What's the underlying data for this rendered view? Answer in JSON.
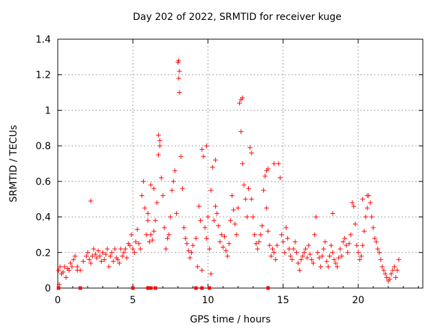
{
  "chart_data": {
    "type": "scatter",
    "title": "Day 202 of 2022, SRMTID for receiver kuge",
    "xlabel": "GPS time / hours",
    "ylabel": "SRMTID / TECUs",
    "xlim": [
      0,
      24.3
    ],
    "ylim": [
      0,
      1.4
    ],
    "xticks": [
      0,
      5,
      10,
      15,
      20
    ],
    "xtick_labels": [
      "0",
      "5",
      "10",
      "15",
      "20"
    ],
    "yticks": [
      0,
      0.2,
      0.4,
      0.6,
      0.8,
      1.0,
      1.2,
      1.4
    ],
    "ytick_labels": [
      "0",
      "0.2",
      "0.4",
      "0.6",
      "0.8",
      "1",
      "1.2",
      "1.4"
    ],
    "grid": true,
    "marker": "+",
    "color": "#ff0000",
    "series": [
      {
        "name": "SRMTID",
        "x": [
          0.05,
          0.15,
          0.25,
          0.35,
          0.45,
          0.55,
          0.65,
          0.75,
          0.85,
          0.95,
          1.05,
          1.15,
          1.3,
          1.5,
          1.7,
          1.9,
          2.0,
          2.1,
          2.2,
          2.3,
          2.4,
          2.5,
          2.6,
          2.7,
          2.8,
          2.9,
          3.0,
          3.1,
          3.2,
          3.3,
          3.4,
          3.5,
          3.6,
          3.7,
          3.8,
          3.9,
          4.0,
          4.1,
          2.2,
          4.3,
          4.4,
          4.5,
          4.6,
          4.7,
          4.8,
          4.9,
          5.0,
          5.1,
          5.2,
          5.3,
          5.4,
          5.5,
          5.6,
          5.7,
          5.8,
          5.9,
          6.0,
          6.1,
          6.2,
          6.3,
          6.4,
          6.5,
          6.6,
          6.7,
          6.8,
          6.9,
          7.0,
          7.1,
          7.2,
          7.3,
          7.4,
          7.5,
          7.6,
          7.7,
          7.8,
          7.9,
          8.0,
          8.05,
          8.1,
          8.2,
          8.3,
          8.4,
          8.5,
          8.6,
          8.7,
          8.8,
          8.9,
          9.0,
          9.2,
          9.4,
          9.5,
          9.6,
          9.7,
          9.8,
          9.9,
          10.0,
          10.1,
          10.2,
          10.3,
          10.4,
          10.5,
          10.6,
          10.7,
          10.8,
          10.9,
          11.0,
          11.1,
          11.2,
          11.3,
          11.4,
          11.5,
          11.6,
          11.7,
          11.8,
          11.9,
          12.0,
          12.1,
          12.2,
          12.3,
          12.4,
          12.5,
          12.6,
          12.7,
          12.8,
          12.9,
          13.0,
          13.1,
          13.2,
          13.3,
          13.4,
          13.5,
          13.6,
          13.7,
          13.8,
          13.9,
          14.0,
          14.1,
          14.2,
          14.3,
          14.4,
          14.5,
          14.6,
          14.7,
          14.8,
          14.9,
          15.0,
          15.1,
          15.2,
          15.3,
          15.4,
          15.5,
          15.6,
          15.7,
          15.8,
          15.9,
          16.0,
          16.1,
          16.2,
          16.3,
          16.4,
          16.5,
          16.6,
          16.7,
          16.8,
          16.9,
          17.0,
          17.1,
          17.2,
          17.3,
          17.4,
          17.5,
          17.6,
          17.7,
          17.8,
          17.9,
          18.0,
          18.1,
          18.2,
          18.3,
          18.4,
          18.5,
          18.6,
          18.7,
          18.8,
          18.9,
          19.0,
          19.1,
          19.2,
          19.3,
          19.4,
          19.5,
          19.6,
          19.7,
          19.8,
          19.9,
          20.0,
          20.1,
          20.2,
          20.3,
          20.4,
          20.5,
          20.6,
          20.7,
          20.8,
          20.9,
          21.0,
          21.1,
          21.2,
          21.3,
          21.4,
          21.5,
          21.6,
          21.7,
          21.8,
          21.9,
          22.0,
          22.1,
          22.2,
          22.3,
          22.4,
          22.5,
          22.6,
          22.7,
          0.1,
          1.3,
          4.2,
          6.0,
          6.2,
          6.4,
          9.3,
          9.6,
          10.2,
          14.0,
          8.05,
          8.1,
          12.3,
          12.2,
          6.7,
          6.8,
          9.9,
          10.5,
          12.9,
          13.9,
          14.4,
          18.3,
          20.3,
          20.6
        ],
        "y": [
          0.1,
          0.12,
          0.08,
          0.09,
          0.12,
          0.06,
          0.11,
          0.1,
          0.14,
          0.12,
          0.16,
          0.18,
          0.12,
          0.1,
          0.15,
          0.18,
          0.2,
          0.16,
          0.14,
          0.18,
          0.22,
          0.19,
          0.17,
          0.21,
          0.18,
          0.15,
          0.2,
          0.16,
          0.19,
          0.22,
          0.12,
          0.18,
          0.2,
          0.15,
          0.22,
          0.17,
          0.16,
          0.14,
          0.49,
          0.18,
          0.2,
          0.22,
          0.17,
          0.25,
          0.24,
          0.3,
          0.22,
          0.2,
          0.26,
          0.33,
          0.25,
          0.22,
          0.52,
          0.6,
          0.45,
          0.3,
          0.38,
          0.26,
          0.3,
          0.27,
          0.32,
          0.38,
          0.48,
          0.75,
          0.83,
          0.62,
          0.52,
          0.34,
          0.22,
          0.28,
          0.3,
          0.4,
          0.55,
          0.6,
          0.66,
          0.42,
          1.27,
          1.18,
          1.1,
          0.74,
          0.56,
          0.34,
          0.28,
          0.25,
          0.21,
          0.17,
          0.2,
          0.24,
          0.28,
          0.46,
          0.38,
          0.78,
          0.74,
          0.34,
          0.28,
          0.4,
          0.22,
          0.55,
          0.68,
          0.38,
          0.46,
          0.42,
          0.35,
          0.26,
          0.3,
          0.23,
          0.29,
          0.21,
          0.18,
          0.25,
          0.38,
          0.52,
          0.44,
          0.36,
          0.3,
          0.45,
          1.04,
          0.88,
          0.7,
          0.58,
          0.5,
          0.4,
          0.56,
          0.79,
          0.76,
          0.4,
          0.3,
          0.25,
          0.22,
          0.26,
          0.3,
          0.35,
          0.55,
          0.63,
          0.45,
          0.32,
          0.24,
          0.18,
          0.22,
          0.2,
          0.16,
          0.24,
          0.7,
          0.62,
          0.3,
          0.26,
          0.2,
          0.34,
          0.28,
          0.22,
          0.18,
          0.16,
          0.22,
          0.26,
          0.2,
          0.14,
          0.1,
          0.16,
          0.18,
          0.2,
          0.22,
          0.17,
          0.24,
          0.19,
          0.16,
          0.14,
          0.3,
          0.4,
          0.2,
          0.17,
          0.12,
          0.18,
          0.22,
          0.26,
          0.15,
          0.12,
          0.18,
          0.24,
          0.2,
          0.16,
          0.14,
          0.12,
          0.17,
          0.22,
          0.18,
          0.26,
          0.28,
          0.24,
          0.2,
          0.25,
          0.3,
          0.48,
          0.46,
          0.36,
          0.24,
          0.2,
          0.16,
          0.18,
          0.24,
          0.32,
          0.4,
          0.45,
          0.52,
          0.48,
          0.4,
          0.34,
          0.28,
          0.26,
          0.22,
          0.2,
          0.16,
          0.12,
          0.1,
          0.08,
          0.06,
          0.04,
          0.05,
          0.08,
          0.1,
          0.12,
          0.06,
          0.1,
          0.16,
          0.02,
          0.1,
          0.22,
          0.42,
          0.58,
          0.56,
          0.12,
          0.1,
          0.08,
          0.67,
          1.28,
          1.22,
          1.07,
          1.06,
          0.86,
          0.8,
          0.8,
          0.72,
          0.5,
          0.66,
          0.7,
          0.42,
          0.5,
          0.52
        ],
        "zero_x": [
          0.05,
          1.5,
          5.0,
          6.0,
          6.2,
          6.5,
          9.2,
          9.6,
          10.1,
          14.0
        ]
      }
    ]
  }
}
